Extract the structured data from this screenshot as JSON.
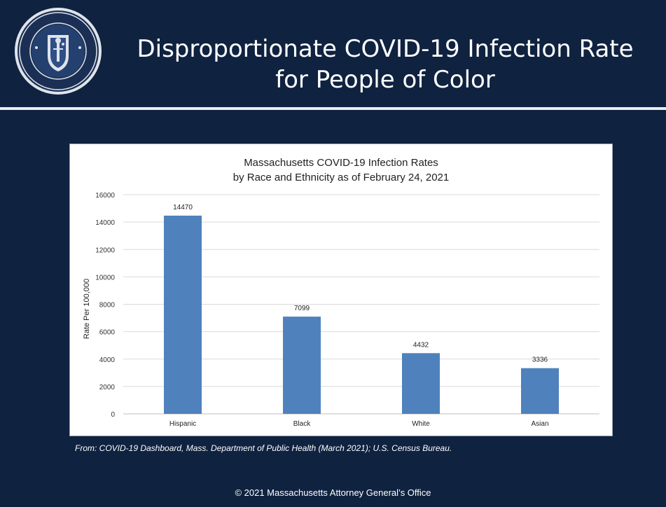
{
  "slide": {
    "title_line1": "Disproportionate COVID-19 Infection Rate",
    "title_line2": "for People of Color",
    "source": "From: COVID-19 Dashboard, Mass. Department of Public Health (March 2021); U.S. Census Bureau.",
    "footer": "© 2021 Massachusetts Attorney General’s Office",
    "seal_icon": "state-seal-icon",
    "colors": {
      "background": "#0f2240",
      "bar": "#4f81bd",
      "title_text": "#ffffff"
    }
  },
  "chart_data": {
    "type": "bar",
    "title": "Massachusetts COVID-19 Infection Rates",
    "subtitle": "by Race and Ethnicity as of February 24, 2021",
    "categories": [
      "Hispanic",
      "Black",
      "White",
      "Asian"
    ],
    "values": [
      14470,
      7099,
      4432,
      3336
    ],
    "data_labels": [
      "14470",
      "7099",
      "4432",
      "3336"
    ],
    "ylabel": "Rate Per 100,000",
    "xlabel": "",
    "ylim": [
      0,
      16000
    ],
    "yticks": [
      0,
      2000,
      4000,
      6000,
      8000,
      10000,
      12000,
      14000,
      16000
    ],
    "ytick_labels": [
      "0",
      "2000",
      "4000",
      "6000",
      "8000",
      "10000",
      "12000",
      "14000",
      "16000"
    ],
    "grid": true,
    "legend": "none"
  }
}
